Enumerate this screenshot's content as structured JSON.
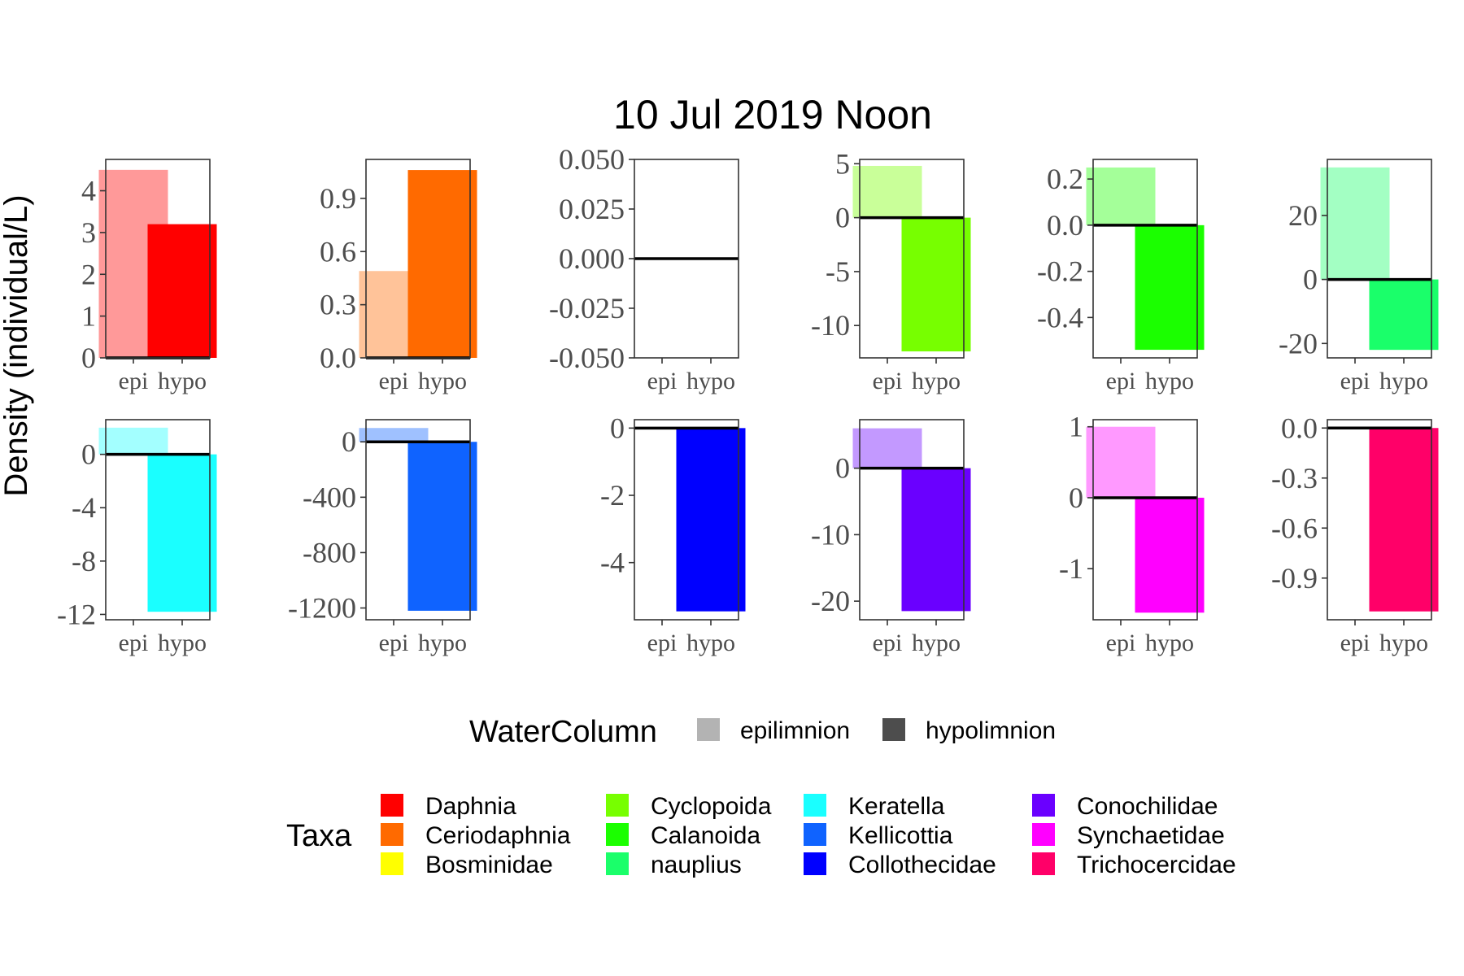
{
  "chart_data": {
    "type": "bar",
    "title": "10 Jul 2019 Noon",
    "ylabel": "Density (individual/L)",
    "xlabel": "",
    "categories": [
      "epi",
      "hypo"
    ],
    "panels": [
      {
        "taxon": "Daphnia",
        "color": "#FF0000",
        "values": [
          4.5,
          3.2
        ],
        "ylim": [
          -0.0,
          4.75
        ],
        "ticks": [
          0,
          1,
          2,
          3,
          4
        ],
        "tick_labels": [
          "0",
          "1",
          "2",
          "3",
          "4"
        ]
      },
      {
        "taxon": "Ceriodaphnia",
        "color": "#FF6A00",
        "values": [
          0.49,
          1.06
        ],
        "ylim": [
          0.0,
          1.12
        ],
        "ticks": [
          0.0,
          0.3,
          0.6,
          0.9
        ],
        "tick_labels": [
          "0.0",
          "0.3",
          "0.6",
          "0.9"
        ]
      },
      {
        "taxon": "Bosminidae",
        "color": "#FFFF00",
        "values": [
          0,
          0
        ],
        "ylim": [
          -0.05,
          0.05
        ],
        "ticks": [
          -0.05,
          -0.025,
          0,
          0.025,
          0.05
        ],
        "tick_labels": [
          "-0.050",
          "-0.025",
          "0.000",
          "0.025",
          "0.050"
        ]
      },
      {
        "taxon": "Cyclopoida",
        "color": "#77FF00",
        "values": [
          4.8,
          -12.4
        ],
        "ylim": [
          -13.0,
          5.4
        ],
        "ticks": [
          -10,
          -5,
          0,
          5
        ],
        "tick_labels": [
          "-10",
          "-5",
          "0",
          "5"
        ]
      },
      {
        "taxon": "Calanoida",
        "color": "#1BFF00",
        "values": [
          0.25,
          -0.54
        ],
        "ylim": [
          -0.575,
          0.285
        ],
        "ticks": [
          -0.4,
          -0.2,
          0.0,
          0.2
        ],
        "tick_labels": [
          "-0.4",
          "-0.2",
          "0.0",
          "0.2"
        ]
      },
      {
        "taxon": "nauplius",
        "color": "#1AFF6A",
        "values": [
          35,
          -22
        ],
        "ylim": [
          -24.5,
          37.5
        ],
        "ticks": [
          -20,
          0,
          20
        ],
        "tick_labels": [
          "-20",
          "0",
          "20"
        ]
      },
      {
        "taxon": "Keratella",
        "color": "#1AFFFF",
        "values": [
          2.0,
          -11.8
        ],
        "ylim": [
          -12.4,
          2.6
        ],
        "ticks": [
          -12,
          -8,
          -4,
          0
        ],
        "tick_labels": [
          "-12",
          "-8",
          "-4",
          "0"
        ]
      },
      {
        "taxon": "Kellicottia",
        "color": "#0F63FF",
        "values": [
          100,
          -1220
        ],
        "ylim": [
          -1285,
          160
        ],
        "ticks": [
          -1200,
          -800,
          -400,
          0
        ],
        "tick_labels": [
          "-1200",
          "-800",
          "-400",
          "0"
        ]
      },
      {
        "taxon": "Collothecidae",
        "color": "#0000FF",
        "values": [
          0,
          -5.45
        ],
        "ylim": [
          -5.7,
          0.25
        ],
        "ticks": [
          -4,
          -2,
          0
        ],
        "tick_labels": [
          "-4",
          "-2",
          "0"
        ]
      },
      {
        "taxon": "Conochilidae",
        "color": "#6A00FF",
        "values": [
          6.0,
          -21.5
        ],
        "ylim": [
          -22.8,
          7.3
        ],
        "ticks": [
          -20,
          -10,
          0
        ],
        "tick_labels": [
          "-20",
          "-10",
          "0"
        ]
      },
      {
        "taxon": "Synchaetidae",
        "color": "#FF00FF",
        "values": [
          1.0,
          -1.62
        ],
        "ylim": [
          -1.72,
          1.1
        ],
        "ticks": [
          -1,
          0,
          1
        ],
        "tick_labels": [
          "-1",
          "0",
          "1"
        ]
      },
      {
        "taxon": "Trichocercidae",
        "color": "#FF0068",
        "values": [
          0,
          -1.1
        ],
        "ylim": [
          -1.15,
          0.05
        ],
        "ticks": [
          -0.9,
          -0.6,
          -0.3,
          0.0
        ],
        "tick_labels": [
          "-0.9",
          "-0.6",
          "-0.3",
          "0.0"
        ]
      }
    ],
    "legend_watercolumn": {
      "title": "WaterColumn",
      "items": [
        {
          "label": "epilimnion",
          "color": "#B3B3B3"
        },
        {
          "label": "hypolimnion",
          "color": "#4D4D4D"
        }
      ]
    },
    "legend_taxa": {
      "title": "Taxa",
      "items": [
        {
          "label": "Daphnia",
          "color": "#FF0000"
        },
        {
          "label": "Ceriodaphnia",
          "color": "#FF6A00"
        },
        {
          "label": "Bosminidae",
          "color": "#FFFF00"
        },
        {
          "label": "Cyclopoida",
          "color": "#77FF00"
        },
        {
          "label": "Calanoida",
          "color": "#1BFF00"
        },
        {
          "label": "nauplius",
          "color": "#1AFF6A"
        },
        {
          "label": "Keratella",
          "color": "#1AFFFF"
        },
        {
          "label": "Kellicottia",
          "color": "#0F63FF"
        },
        {
          "label": "Collothecidae",
          "color": "#0000FF"
        },
        {
          "label": "Conochilidae",
          "color": "#6A00FF"
        },
        {
          "label": "Synchaetidae",
          "color": "#FF00FF"
        },
        {
          "label": "Trichocercidae",
          "color": "#FF0068"
        }
      ]
    },
    "legend_position": "bottom",
    "grid": false
  }
}
